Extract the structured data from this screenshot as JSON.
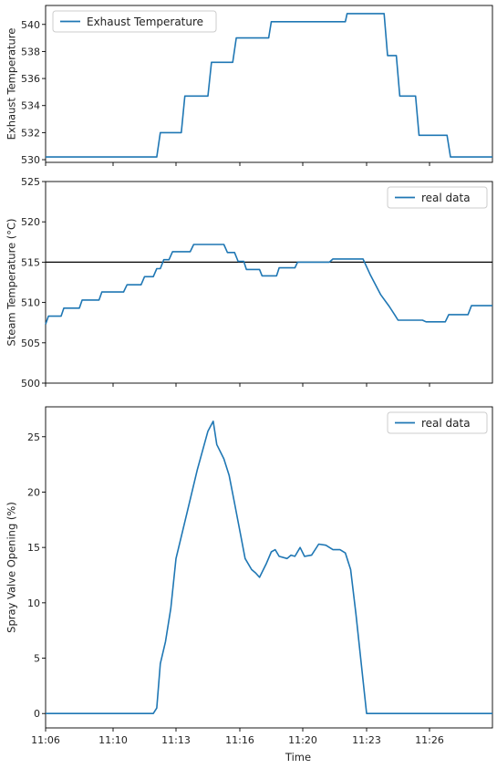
{
  "chart_data": [
    {
      "type": "line",
      "title": "",
      "xlabel": "",
      "ylabel": "Exhaust Temperature",
      "ylim": [
        529.8,
        541.4
      ],
      "yticks": [
        530,
        532,
        534,
        536,
        538,
        540
      ],
      "ytick_labels": [
        "530",
        "532",
        "534",
        "536",
        "538",
        "540"
      ],
      "xlim": [
        "11:06",
        "11:29"
      ],
      "grid": false,
      "legend_position": "upper-left",
      "series": [
        {
          "name": "Exhaust Temperature",
          "color": "#1f77b4",
          "points": [
            [
              "11:06:00",
              530.2
            ],
            [
              "11:12:05",
              530.2
            ],
            [
              "11:12:15",
              532.0
            ],
            [
              "11:13:15",
              532.0
            ],
            [
              "11:13:25",
              534.7
            ],
            [
              "11:14:30",
              534.7
            ],
            [
              "11:14:40",
              537.2
            ],
            [
              "11:15:40",
              537.2
            ],
            [
              "11:15:50",
              539.0
            ],
            [
              "11:17:50",
              539.0
            ],
            [
              "11:18:00",
              540.2
            ],
            [
              "11:22:00",
              540.2
            ],
            [
              "11:22:05",
              540.8
            ],
            [
              "11:23:50",
              540.8
            ],
            [
              "11:24:00",
              537.7
            ],
            [
              "11:24:25",
              537.7
            ],
            [
              "11:24:35",
              534.7
            ],
            [
              "11:25:20",
              534.7
            ],
            [
              "11:25:30",
              531.8
            ],
            [
              "11:26:50",
              531.8
            ],
            [
              "11:27:00",
              530.2
            ],
            [
              "11:29:00",
              530.2
            ]
          ]
        }
      ]
    },
    {
      "type": "line",
      "title": "",
      "xlabel": "",
      "ylabel": "Steam Temperature (°C)",
      "ylim": [
        500,
        525
      ],
      "yticks": [
        500,
        505,
        510,
        515,
        520,
        525
      ],
      "ytick_labels": [
        "500",
        "505",
        "510",
        "515",
        "520",
        "525"
      ],
      "xlim": [
        "11:06",
        "11:29"
      ],
      "grid": false,
      "legend_position": "upper-right",
      "reference_line": 515,
      "series": [
        {
          "name": "real data",
          "color": "#1f77b4",
          "points": [
            [
              "11:06:00",
              507.3
            ],
            [
              "11:06:10",
              508.3
            ],
            [
              "11:06:55",
              508.3
            ],
            [
              "11:07:05",
              509.3
            ],
            [
              "11:08:00",
              509.3
            ],
            [
              "11:08:10",
              510.3
            ],
            [
              "11:09:10",
              510.3
            ],
            [
              "11:09:20",
              511.3
            ],
            [
              "11:10:30",
              511.3
            ],
            [
              "11:10:40",
              512.2
            ],
            [
              "11:11:20",
              512.2
            ],
            [
              "11:11:30",
              513.2
            ],
            [
              "11:11:55",
              513.2
            ],
            [
              "11:12:05",
              514.2
            ],
            [
              "11:12:15",
              514.2
            ],
            [
              "11:12:25",
              515.3
            ],
            [
              "11:12:40",
              515.3
            ],
            [
              "11:12:50",
              516.3
            ],
            [
              "11:13:40",
              516.3
            ],
            [
              "11:13:50",
              517.2
            ],
            [
              "11:15:15",
              517.2
            ],
            [
              "11:15:25",
              516.2
            ],
            [
              "11:15:45",
              516.2
            ],
            [
              "11:15:55",
              515.1
            ],
            [
              "11:16:15",
              515.1
            ],
            [
              "11:16:25",
              514.1
            ],
            [
              "11:17:15",
              514.1
            ],
            [
              "11:17:25",
              513.3
            ],
            [
              "11:18:20",
              513.3
            ],
            [
              "11:18:30",
              514.3
            ],
            [
              "11:19:30",
              514.3
            ],
            [
              "11:19:40",
              515.0
            ],
            [
              "11:21:15",
              515.0
            ],
            [
              "11:21:25",
              515.4
            ],
            [
              "11:22:50",
              515.4
            ],
            [
              "11:23:10",
              513.5
            ],
            [
              "11:23:40",
              511.0
            ],
            [
              "11:24:05",
              509.5
            ],
            [
              "11:24:20",
              508.5
            ],
            [
              "11:24:30",
              507.8
            ],
            [
              "11:25:40",
              507.8
            ],
            [
              "11:25:50",
              507.6
            ],
            [
              "11:26:45",
              507.6
            ],
            [
              "11:26:55",
              508.5
            ],
            [
              "11:27:50",
              508.5
            ],
            [
              "11:28:00",
              509.6
            ],
            [
              "11:29:00",
              509.6
            ]
          ]
        }
      ]
    },
    {
      "type": "line",
      "title": "",
      "xlabel": "Time",
      "ylabel": "Spray Valve Opening (%)",
      "ylim": [
        -1.3,
        27.7
      ],
      "yticks": [
        0,
        5,
        10,
        15,
        20,
        25
      ],
      "ytick_labels": [
        "0",
        "5",
        "10",
        "15",
        "20",
        "25"
      ],
      "xlim": [
        "11:06",
        "11:29"
      ],
      "xticks": [
        "11:06",
        "11:10",
        "11:13",
        "11:16",
        "11:20",
        "11:23",
        "11:26"
      ],
      "xtick_labels": [
        "11:06",
        "11:10",
        "11:13",
        "11:16",
        "11:20",
        "11:23",
        "11:26"
      ],
      "grid": false,
      "legend_position": "upper-right",
      "series": [
        {
          "name": "real data",
          "color": "#1f77b4",
          "points": [
            [
              "11:06:00",
              0.0
            ],
            [
              "11:11:55",
              0.0
            ],
            [
              "11:12:05",
              0.5
            ],
            [
              "11:12:15",
              4.5
            ],
            [
              "11:12:30",
              6.5
            ],
            [
              "11:12:45",
              9.5
            ],
            [
              "11:13:00",
              14.0
            ],
            [
              "11:13:30",
              18.0
            ],
            [
              "11:14:00",
              22.0
            ],
            [
              "11:14:30",
              25.5
            ],
            [
              "11:14:45",
              26.4
            ],
            [
              "11:14:55",
              24.3
            ],
            [
              "11:15:15",
              23.0
            ],
            [
              "11:15:30",
              21.5
            ],
            [
              "11:15:45",
              19.0
            ],
            [
              "11:16:00",
              16.5
            ],
            [
              "11:16:20",
              14.0
            ],
            [
              "11:16:45",
              13.0
            ],
            [
              "11:17:00",
              12.7
            ],
            [
              "11:17:15",
              12.3
            ],
            [
              "11:17:40",
              13.5
            ],
            [
              "11:18:00",
              14.6
            ],
            [
              "11:18:15",
              14.8
            ],
            [
              "11:18:30",
              14.2
            ],
            [
              "11:19:00",
              14.0
            ],
            [
              "11:19:15",
              14.3
            ],
            [
              "11:19:30",
              14.2
            ],
            [
              "11:19:50",
              15.0
            ],
            [
              "11:20:05",
              14.2
            ],
            [
              "11:20:25",
              14.3
            ],
            [
              "11:20:45",
              15.3
            ],
            [
              "11:21:05",
              15.2
            ],
            [
              "11:21:25",
              14.8
            ],
            [
              "11:21:45",
              14.8
            ],
            [
              "11:22:00",
              14.5
            ],
            [
              "11:22:15",
              13.0
            ],
            [
              "11:22:30",
              9.0
            ],
            [
              "11:22:50",
              3.0
            ],
            [
              "11:23:00",
              0.0
            ],
            [
              "11:29:00",
              0.0
            ]
          ]
        }
      ]
    }
  ]
}
